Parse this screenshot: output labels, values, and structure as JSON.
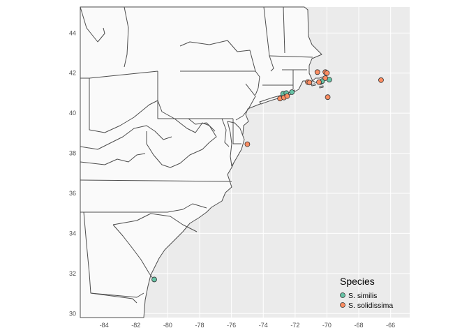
{
  "chart_data": {
    "type": "scatter",
    "map": "US East Coast",
    "xlim": [
      -85.5,
      -64.8
    ],
    "ylim": [
      29.8,
      45.3
    ],
    "x_ticks": [
      -84,
      -82,
      -80,
      -78,
      -76,
      -74,
      -72,
      -70,
      -68,
      -66
    ],
    "y_ticks": [
      30,
      32,
      34,
      36,
      38,
      40,
      42,
      44
    ],
    "x_tick_labels": [
      "-84",
      "-82",
      "-80",
      "-78",
      "-76",
      "-74",
      "-72",
      "-70",
      "-68",
      "-66"
    ],
    "y_tick_labels": [
      "30",
      "32",
      "34",
      "36",
      "38",
      "40",
      "42",
      "44"
    ],
    "legend": {
      "title": "Species",
      "position": "bottom-right",
      "entries": [
        {
          "name": "S. similis",
          "color": "#66c2a5"
        },
        {
          "name": "S. solidissima",
          "color": "#fc8d62"
        }
      ]
    },
    "series": [
      {
        "name": "S. similis",
        "color": "#66c2a5",
        "points": [
          {
            "x": -80.85,
            "y": 31.7
          },
          {
            "x": -72.75,
            "y": 40.97
          },
          {
            "x": -72.55,
            "y": 41.0
          },
          {
            "x": -72.2,
            "y": 41.05
          },
          {
            "x": -70.4,
            "y": 41.55
          },
          {
            "x": -70.3,
            "y": 41.6
          },
          {
            "x": -69.85,
            "y": 41.67
          }
        ]
      },
      {
        "name": "S. solidissima",
        "color": "#fc8d62",
        "points": [
          {
            "x": -75.0,
            "y": 38.45
          },
          {
            "x": -72.95,
            "y": 40.73
          },
          {
            "x": -72.7,
            "y": 40.78
          },
          {
            "x": -72.5,
            "y": 40.85
          },
          {
            "x": -71.2,
            "y": 41.55
          },
          {
            "x": -71.1,
            "y": 41.53
          },
          {
            "x": -70.5,
            "y": 41.55
          },
          {
            "x": -70.1,
            "y": 41.75
          },
          {
            "x": -70.6,
            "y": 42.05
          },
          {
            "x": -70.1,
            "y": 42.05
          },
          {
            "x": -70.0,
            "y": 42.0
          },
          {
            "x": -69.95,
            "y": 40.8
          },
          {
            "x": -66.6,
            "y": 41.65
          }
        ]
      }
    ]
  },
  "colors": {
    "panel_background": "#ebebeb",
    "land": "#fafafa",
    "border": "#4d4d4d",
    "grid": "#ffffff",
    "point_outline": "#333333"
  }
}
